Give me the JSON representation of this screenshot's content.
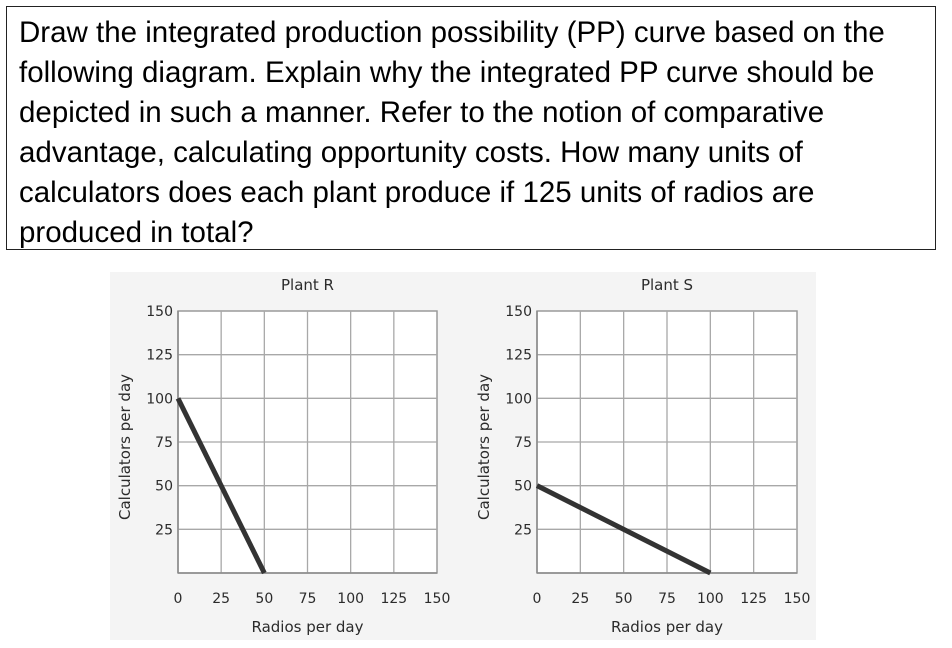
{
  "question": {
    "text": "Draw the integrated production possibility (PP) curve based on the following diagram. Explain why the integrated PP curve should be depicted in such a manner. Refer to the notion of comparative advantage, calculating opportunity costs. How many units of calculators does each plant produce if 125 units of radios are produced in total?"
  },
  "chart_data": [
    {
      "type": "line",
      "title": "Plant R",
      "xlabel": "Radios per day",
      "ylabel": "Calculators per day",
      "xlim": [
        0,
        150
      ],
      "ylim": [
        0,
        150
      ],
      "xticks": [
        0,
        25,
        50,
        75,
        100,
        125,
        150
      ],
      "yticks": [
        25,
        50,
        75,
        100,
        125,
        150
      ],
      "grid": true,
      "series": [
        {
          "x": [
            0,
            50
          ],
          "y": [
            100,
            0
          ],
          "color": "#333333"
        }
      ]
    },
    {
      "type": "line",
      "title": "Plant S",
      "xlabel": "Radios per day",
      "ylabel": "Calculators per day",
      "xlim": [
        0,
        150
      ],
      "ylim": [
        0,
        150
      ],
      "xticks": [
        0,
        25,
        50,
        75,
        100,
        125,
        150
      ],
      "yticks": [
        25,
        50,
        75,
        100,
        125,
        150
      ],
      "grid": true,
      "series": [
        {
          "x": [
            0,
            100
          ],
          "y": [
            50,
            0
          ],
          "color": "#333333"
        }
      ]
    }
  ]
}
